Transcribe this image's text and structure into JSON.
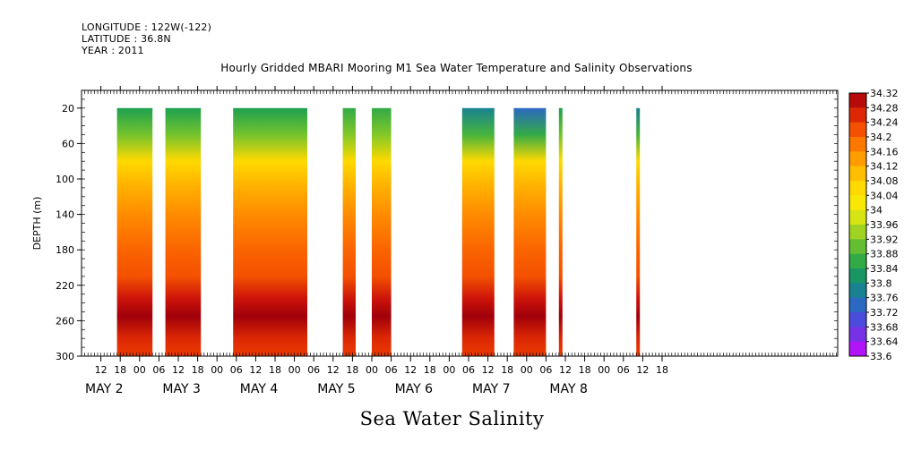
{
  "header": {
    "longitude": "LONGITUDE : 122W(-122)",
    "latitude": "LATITUDE : 36.8N",
    "year": "YEAR : 2011"
  },
  "chart_data": {
    "type": "heatmap",
    "title": "Hourly Gridded MBARI Mooring M1 Sea Water Temperature and Salinity Observations",
    "bottom_title": "Sea Water Salinity",
    "ylabel": "DEPTH (m)",
    "ylim": [
      300,
      0
    ],
    "y_ticks": [
      "20",
      "60",
      "100",
      "140",
      "180",
      "220",
      "260",
      "300"
    ],
    "hour_ticks": [
      "12",
      "18",
      "00",
      "06",
      "12",
      "18",
      "00",
      "06",
      "12",
      "18",
      "00",
      "06",
      "12",
      "18",
      "00",
      "06",
      "12",
      "18",
      "00",
      "06",
      "12",
      "18",
      "00",
      "06",
      "12",
      "18",
      "00",
      "06",
      "12",
      "18"
    ],
    "day_labels": [
      "MAY  2",
      "MAY  3",
      "MAY  4",
      "MAY  5",
      "MAY  6",
      "MAY  7",
      "MAY  8"
    ],
    "colorbar": {
      "labels": [
        "34.32",
        "34.28",
        "34.24",
        "34.2",
        "34.16",
        "34.12",
        "34.08",
        "34.04",
        "34",
        "33.96",
        "33.92",
        "33.88",
        "33.84",
        "33.8",
        "33.76",
        "33.72",
        "33.68",
        "33.64",
        "33.6"
      ],
      "range": [
        33.6,
        34.32
      ]
    },
    "time_axis_start": "2011-05-02 06:00",
    "data_blocks": [
      {
        "start": "2011-05-02 17:00",
        "end": "2011-05-03 04:00",
        "shallow_salinity": 33.84
      },
      {
        "start": "2011-05-03 08:00",
        "end": "2011-05-03 19:00",
        "shallow_salinity": 33.84
      },
      {
        "start": "2011-05-04 05:00",
        "end": "2011-05-05 04:00",
        "shallow_salinity": 33.84
      },
      {
        "start": "2011-05-05 15:00",
        "end": "2011-05-05 19:00",
        "shallow_salinity": 33.86
      },
      {
        "start": "2011-05-06 00:00",
        "end": "2011-05-06 06:00",
        "shallow_salinity": 33.86
      },
      {
        "start": "2011-05-07 04:00",
        "end": "2011-05-07 14:00",
        "shallow_salinity": 33.78
      },
      {
        "start": "2011-05-07 20:00",
        "end": "2011-05-08 06:00",
        "shallow_salinity": 33.74
      },
      {
        "start": "2011-05-08 10:00",
        "end": "2011-05-08 11:00",
        "shallow_salinity": 33.84
      },
      {
        "start": "2011-05-09 10:00",
        "end": "2011-05-09 11:00",
        "shallow_salinity": 33.78
      }
    ],
    "salinity_profile": [
      {
        "depth": 20,
        "salinity": 33.84
      },
      {
        "depth": 50,
        "salinity": 33.94
      },
      {
        "depth": 80,
        "salinity": 34.06
      },
      {
        "depth": 110,
        "salinity": 34.12
      },
      {
        "depth": 140,
        "salinity": 34.16
      },
      {
        "depth": 180,
        "salinity": 34.2
      },
      {
        "depth": 210,
        "salinity": 34.22
      },
      {
        "depth": 235,
        "salinity": 34.28
      },
      {
        "depth": 255,
        "salinity": 34.32
      },
      {
        "depth": 280,
        "salinity": 34.26
      },
      {
        "depth": 300,
        "salinity": 34.24
      }
    ]
  }
}
